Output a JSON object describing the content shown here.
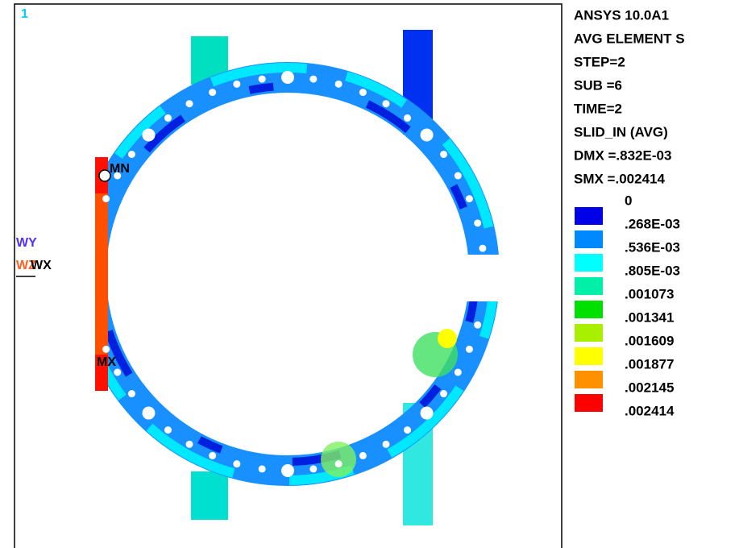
{
  "viewport": {
    "number": "1"
  },
  "info": [
    "ANSYS 10.0A1",
    "AVG ELEMENT S",
    "STEP=2",
    "SUB =6",
    "TIME=2",
    "SLID_IN  (AVG)",
    "DMX =.832E-03",
    "SMX =.002414"
  ],
  "legend": {
    "levels": [
      "0",
      ".268E-03",
      ".536E-03",
      ".805E-03",
      ".001073",
      ".001341",
      ".001609",
      ".001877",
      ".002145",
      ".002414"
    ],
    "colors": [
      "#0000e8",
      "#0088ff",
      "#00ffff",
      "#00f0a8",
      "#00e000",
      "#a8f000",
      "#ffff00",
      "#ff9000",
      "#ff0000"
    ]
  },
  "markers": {
    "min": "MN",
    "max": "MX"
  },
  "triad": {
    "y": "WY",
    "z": "WZ",
    "x": "WX"
  }
}
